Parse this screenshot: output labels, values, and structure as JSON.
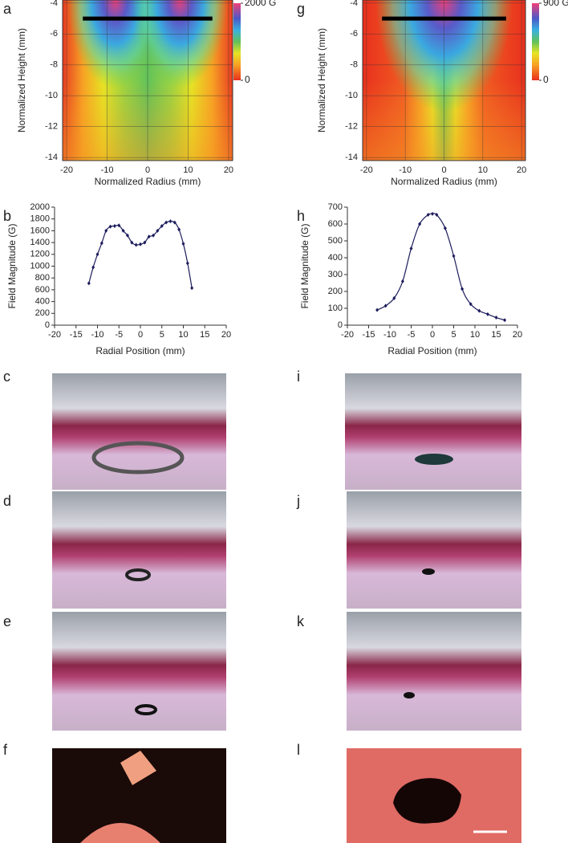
{
  "panel_labels": [
    "a",
    "b",
    "c",
    "d",
    "e",
    "f",
    "g",
    "h",
    "i",
    "j",
    "k",
    "l"
  ],
  "chart_data": [
    {
      "type": "heatmap",
      "xlabel": "Normalized Radius (mm)",
      "ylabel": "Normalized Height (mm)",
      "xlim": [
        -21,
        21
      ],
      "ylim": [
        -14.2,
        -3.8
      ],
      "xticks": [
        -20,
        -10,
        0,
        10,
        20
      ],
      "yticks": [
        -4,
        -6,
        -8,
        -10,
        -12,
        -14
      ],
      "colorbar_lim": [
        0,
        2000
      ],
      "colorbar_ticks": [
        {
          "value": 2000,
          "label": "2000 G"
        },
        {
          "value": 0,
          "label": "0"
        }
      ],
      "magnet": {
        "x": [
          -16,
          16
        ],
        "y": -5
      }
    },
    {
      "type": "line",
      "xlabel": "Radial Position (mm)",
      "ylabel": "Field Magnitude (G)",
      "color": "#1c1c5c",
      "xlim": [
        -20,
        20
      ],
      "ylim": [
        0,
        2000
      ],
      "xticks": [
        -20,
        -15,
        -10,
        -5,
        0,
        5,
        10,
        15,
        20
      ],
      "yticks": [
        0,
        200,
        400,
        600,
        800,
        1000,
        1200,
        1400,
        1600,
        1800,
        2000
      ],
      "x": [
        -12,
        -11,
        -10,
        -9,
        -8,
        -7,
        -6,
        -5,
        -4,
        -3,
        -2,
        -1,
        0,
        1,
        2,
        3,
        4,
        5,
        6,
        7,
        8,
        9,
        10,
        11,
        12
      ],
      "values": [
        710,
        980,
        1200,
        1390,
        1600,
        1670,
        1680,
        1690,
        1600,
        1520,
        1400,
        1360,
        1370,
        1400,
        1500,
        1520,
        1600,
        1680,
        1740,
        1760,
        1740,
        1620,
        1380,
        1050,
        630
      ]
    },
    {
      "type": "heatmap",
      "xlabel": "Normalized Radius (mm)",
      "ylabel": "Normalized Height (mm)",
      "xlim": [
        -21,
        21
      ],
      "ylim": [
        -14.2,
        -3.8
      ],
      "xticks": [
        -20,
        -10,
        0,
        10,
        20
      ],
      "yticks": [
        -4,
        -6,
        -8,
        -10,
        -12,
        -14
      ],
      "colorbar_lim": [
        0,
        900
      ],
      "colorbar_ticks": [
        {
          "value": 900,
          "label": "900 G"
        },
        {
          "value": 0,
          "label": "0"
        }
      ],
      "magnet": {
        "x": [
          -16,
          16
        ],
        "y": -5
      }
    },
    {
      "type": "line",
      "xlabel": "Radial Position (mm)",
      "ylabel": "Field Magnitude (G)",
      "color": "#1c1c5c",
      "xlim": [
        -20,
        20
      ],
      "ylim": [
        0,
        700
      ],
      "xticks": [
        -20,
        -15,
        -10,
        -5,
        0,
        5,
        10,
        15,
        20
      ],
      "yticks": [
        0,
        100,
        200,
        300,
        400,
        500,
        600,
        700
      ],
      "x": [
        -13,
        -11,
        -9,
        -7,
        -5,
        -3,
        -1,
        0,
        1,
        3,
        5,
        7,
        9,
        11,
        13,
        15,
        17
      ],
      "values": [
        90,
        115,
        160,
        260,
        455,
        600,
        655,
        660,
        655,
        575,
        410,
        215,
        125,
        85,
        65,
        45,
        30
      ]
    }
  ]
}
